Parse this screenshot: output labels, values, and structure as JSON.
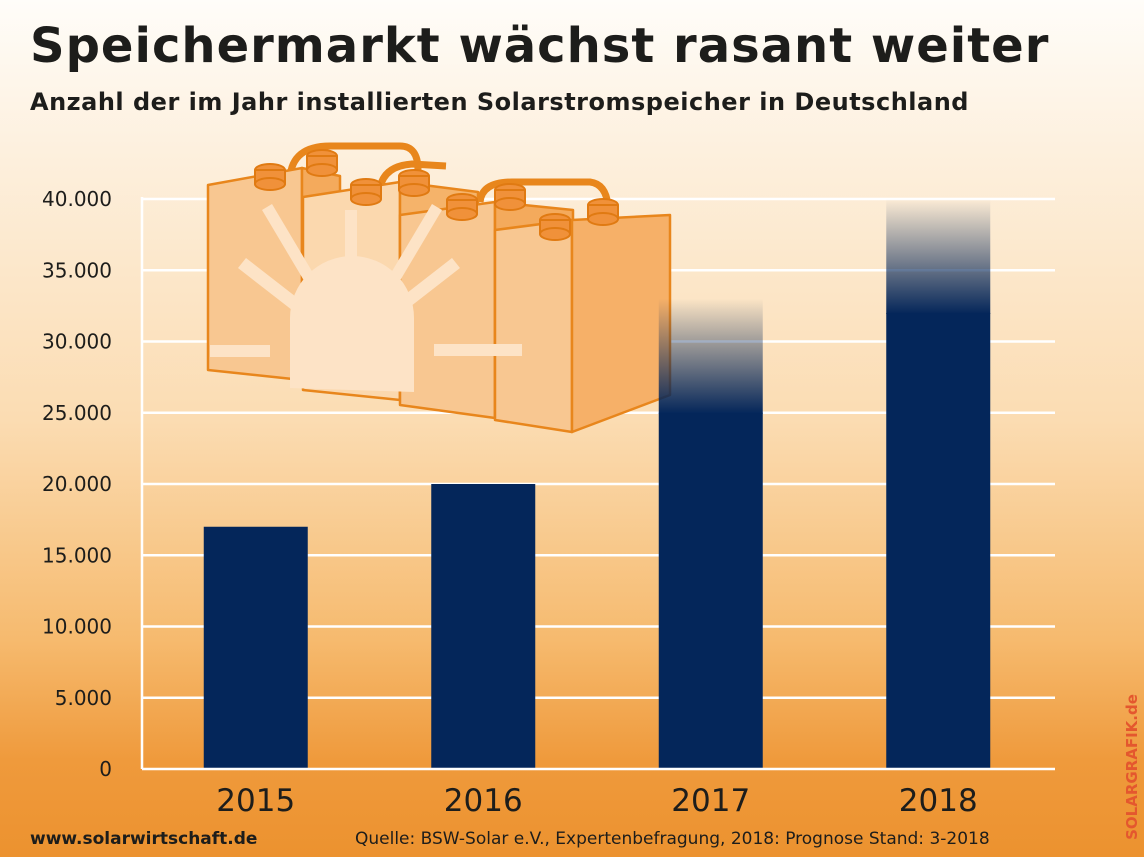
{
  "header": {
    "title": "Speichermarkt wächst rasant weiter",
    "subtitle": "Anzahl der im Jahr installierten Solarstromspeicher in Deutschland"
  },
  "chart_data": {
    "type": "bar",
    "categories": [
      "2015",
      "2016",
      "2017",
      "2018"
    ],
    "values": [
      17000,
      20000,
      33000,
      40000
    ],
    "solid_values": [
      17000,
      20000,
      25000,
      32000
    ],
    "ylim": [
      0,
      40000
    ],
    "yticks": [
      "0",
      "5.000",
      "10.000",
      "15.000",
      "20.000",
      "25.000",
      "30.000",
      "35.000",
      "40.000"
    ],
    "grid": true,
    "bar_color": "#04265a"
  },
  "footer": {
    "website": "www.solarwirtschaft.de",
    "source": "Quelle: BSW-Solar e.V., Expertenbefragung,  2018: Prognose Stand: 3-2018",
    "credit": "SOLARGRAFIK.de"
  },
  "illustration": {
    "icon": "battery-storage-sun-icon"
  }
}
